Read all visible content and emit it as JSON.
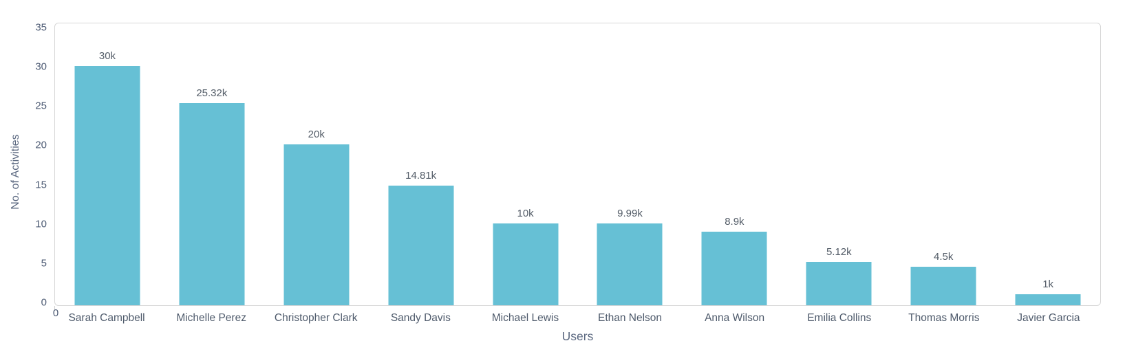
{
  "chart_data": {
    "type": "bar",
    "title": "",
    "xlabel": "Users",
    "ylabel": "No. of Activities",
    "categories": [
      "Sarah Campbell",
      "Michelle Perez",
      "Christopher Clark",
      "Sandy Davis",
      "Michael Lewis",
      "Ethan Nelson",
      "Anna Wilson",
      "Emilia Collins",
      "Thomas Morris",
      "Javier Garcia"
    ],
    "values": [
      30,
      25.32,
      20,
      14.81,
      10,
      9.99,
      8.9,
      5.12,
      4.5,
      1
    ],
    "value_unit": "k",
    "value_labels": [
      "30k",
      "25.32k",
      "20k",
      "14.81k",
      "10k",
      "9.99k",
      "8.9k",
      "5.12k",
      "4.5k",
      "1k"
    ],
    "y_ticks": [
      0,
      5,
      10,
      15,
      20,
      25,
      30,
      35
    ],
    "ylim": [
      0,
      35
    ],
    "origin_tick_label": "0",
    "grid": false,
    "legend": "none",
    "colors": {
      "bar": "#66c0d5",
      "plot_border": "#d6d6d6",
      "tick_text": "#4c5a73",
      "category_text": "#4e5a6b",
      "value_text": "#545d68",
      "axis_title_text": "#5b6880"
    }
  }
}
